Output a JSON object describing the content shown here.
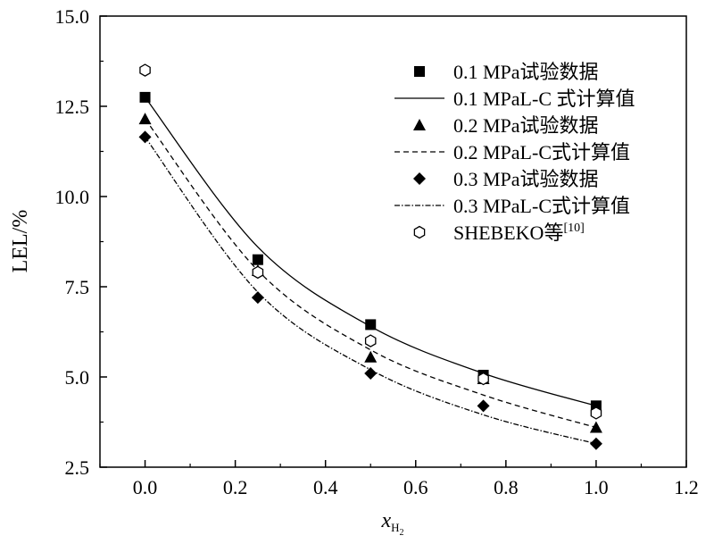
{
  "chart_data": {
    "type": "scatter",
    "xlabel": "x",
    "xlabel_subscript": "H",
    "xlabel_subsubscript": "2",
    "ylabel": "LEL/%",
    "xlim": [
      -0.1,
      1.2
    ],
    "ylim": [
      2.5,
      15.0
    ],
    "xticks": [
      "0.0",
      "0.2",
      "0.4",
      "0.6",
      "0.8",
      "1.0",
      "1.2"
    ],
    "yticks": [
      "2.5",
      "5.0",
      "7.5",
      "10.0",
      "12.5",
      "15.0"
    ],
    "legend_position": "top-right",
    "series": [
      {
        "name": "0.1 MPa试验数据",
        "kind": "points",
        "marker": "square",
        "x": [
          0,
          0.25,
          0.5,
          0.75,
          1.0
        ],
        "y": [
          12.75,
          8.25,
          6.45,
          5.05,
          4.2
        ]
      },
      {
        "name": "0.1 MPaL-C 式计算值",
        "kind": "line",
        "dash": "solid",
        "x": [
          0,
          0.25,
          0.5,
          0.75,
          1.0
        ],
        "y": [
          12.75,
          8.6,
          6.4,
          5.1,
          4.2
        ]
      },
      {
        "name": "0.2 MPa试验数据",
        "kind": "points",
        "marker": "triangle",
        "x": [
          0,
          0.25,
          0.5,
          0.75,
          1.0
        ],
        "y": [
          12.15,
          7.95,
          5.55,
          4.95,
          3.6
        ]
      },
      {
        "name": "0.2 MPaL-C式计算值",
        "kind": "line",
        "dash": "dashed",
        "x": [
          0,
          0.25,
          0.5,
          0.75,
          1.0
        ],
        "y": [
          12.15,
          7.95,
          5.75,
          4.5,
          3.6
        ]
      },
      {
        "name": "0.3 MPa试验数据",
        "kind": "points",
        "marker": "diamond",
        "x": [
          0,
          0.25,
          0.5,
          0.75,
          1.0
        ],
        "y": [
          11.65,
          7.2,
          5.1,
          4.2,
          3.15
        ]
      },
      {
        "name": "0.3 MPaL-C式计算值",
        "kind": "line",
        "dash": "dashdot",
        "x": [
          0,
          0.25,
          0.5,
          0.75,
          1.0
        ],
        "y": [
          11.65,
          7.35,
          5.2,
          3.95,
          3.15
        ]
      },
      {
        "name": "SHEBEKO等",
        "name_superscript": "[10]",
        "kind": "points",
        "marker": "hexagon",
        "x": [
          0,
          0.25,
          0.5,
          0.75,
          1.0
        ],
        "y": [
          13.5,
          7.9,
          6.0,
          4.95,
          4.0
        ]
      }
    ]
  }
}
